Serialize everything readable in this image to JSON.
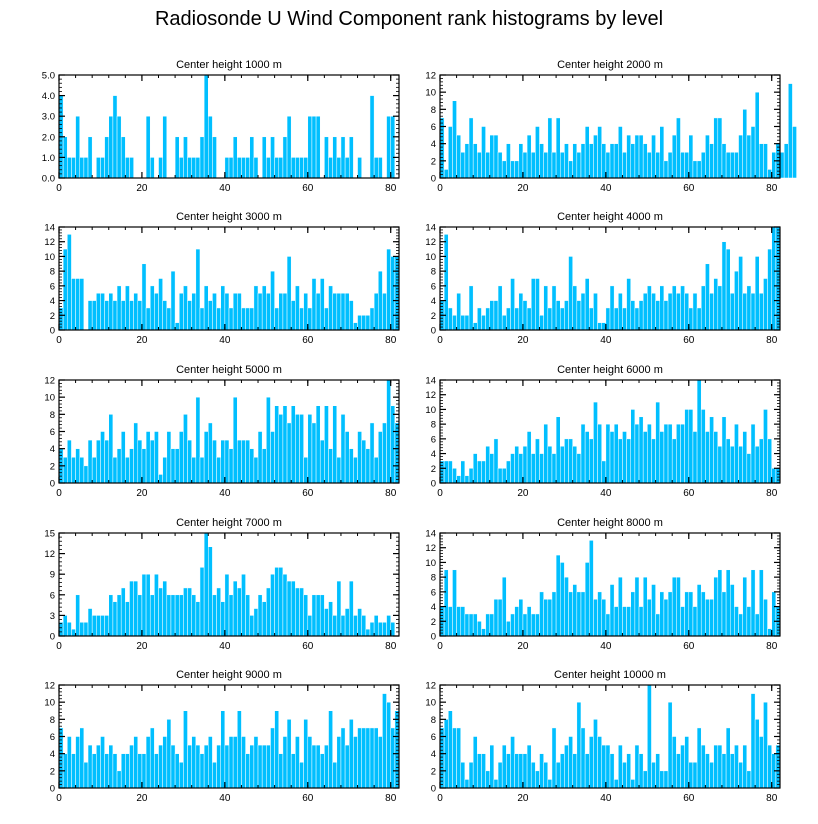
{
  "title": "Radiosonde U Wind Component rank histograms by level",
  "colors": {
    "bar_fill": "#00bfff",
    "bar_edge": "#ffffff",
    "axis": "#000000"
  },
  "chart_data": [
    {
      "type": "bar",
      "title": "Center height 1000 m",
      "xlim": [
        0,
        82
      ],
      "ylim": [
        0,
        5
      ],
      "xticks": [
        0,
        20,
        40,
        60,
        80
      ],
      "yticks": [
        0,
        1,
        2,
        3,
        4,
        5
      ],
      "ytick_labels": [
        "0.0",
        "1.0",
        "2.0",
        "3.0",
        "4.0",
        "5.0"
      ],
      "values": [
        4,
        2,
        1,
        1,
        3,
        1,
        1,
        2,
        0,
        1,
        1,
        2,
        3,
        4,
        3,
        2,
        1,
        1,
        0,
        0,
        0,
        3,
        1,
        0,
        1,
        3,
        0,
        0,
        2,
        1,
        2,
        1,
        1,
        1,
        2,
        5,
        3,
        2,
        0,
        0,
        1,
        1,
        2,
        1,
        1,
        1,
        2,
        1,
        0,
        2,
        1,
        2,
        1,
        1,
        2,
        3,
        1,
        1,
        1,
        1,
        3,
        3,
        3,
        0,
        2,
        1,
        2,
        1,
        2,
        1,
        2,
        0,
        1,
        0,
        0,
        4,
        1,
        1,
        0,
        3,
        3,
        0
      ]
    },
    {
      "type": "bar",
      "title": "Center height 2000 m",
      "xlim": [
        0,
        82
      ],
      "ylim": [
        0,
        12
      ],
      "xticks": [
        0,
        20,
        40,
        60,
        80
      ],
      "yticks": [
        0,
        2,
        4,
        6,
        8,
        10,
        12
      ],
      "ytick_labels": [
        "0",
        "2",
        "4",
        "6",
        "8",
        "10",
        "12"
      ],
      "values": [
        7,
        1,
        6,
        9,
        5,
        3,
        4,
        7,
        4,
        3,
        6,
        3,
        5,
        5,
        3,
        2,
        4,
        2,
        2,
        4,
        3,
        5,
        3,
        6,
        4,
        3,
        7,
        3,
        7,
        3,
        4,
        2,
        4,
        3,
        4,
        6,
        4,
        5,
        6,
        4,
        3,
        4,
        4,
        6,
        3,
        5,
        4,
        5,
        5,
        4,
        3,
        5,
        3,
        6,
        2,
        3,
        5,
        7,
        3,
        3,
        5,
        2,
        2,
        3,
        5,
        4,
        7,
        7,
        4,
        3,
        3,
        3,
        5,
        8,
        5,
        6,
        10,
        4,
        4,
        1,
        3,
        4,
        3,
        4,
        11,
        6
      ]
    },
    {
      "type": "bar",
      "title": "Center height 3000 m",
      "xlim": [
        0,
        82
      ],
      "ylim": [
        0,
        14
      ],
      "xticks": [
        0,
        20,
        40,
        60,
        80
      ],
      "yticks": [
        0,
        2,
        4,
        6,
        8,
        10,
        12,
        14
      ],
      "ytick_labels": [
        "0",
        "2",
        "4",
        "6",
        "8",
        "10",
        "12",
        "14"
      ],
      "values": [
        3,
        11,
        13,
        7,
        7,
        7,
        0,
        4,
        4,
        5,
        5,
        4,
        5,
        4,
        6,
        4,
        6,
        4,
        5,
        4,
        9,
        3,
        6,
        5,
        7,
        4,
        3,
        8,
        1,
        5,
        6,
        4,
        5,
        11,
        3,
        6,
        4,
        5,
        3,
        6,
        5,
        3,
        5,
        5,
        3,
        3,
        3,
        6,
        5,
        6,
        5,
        8,
        3,
        5,
        5,
        10,
        4,
        6,
        3,
        5,
        3,
        7,
        5,
        7,
        3,
        6,
        5,
        5,
        5,
        5,
        4,
        1,
        2,
        2,
        2,
        3,
        5,
        8,
        5,
        11,
        10,
        10
      ]
    },
    {
      "type": "bar",
      "title": "Center height 4000 m",
      "xlim": [
        0,
        82
      ],
      "ylim": [
        0,
        14
      ],
      "xticks": [
        0,
        20,
        40,
        60,
        80
      ],
      "yticks": [
        0,
        2,
        4,
        6,
        8,
        10,
        12,
        14
      ],
      "ytick_labels": [
        "0",
        "2",
        "4",
        "6",
        "8",
        "10",
        "12",
        "14"
      ],
      "values": [
        4,
        13,
        3,
        2,
        5,
        2,
        2,
        6,
        1,
        3,
        2,
        3,
        4,
        4,
        6,
        2,
        3,
        7,
        3,
        5,
        4,
        3,
        7,
        7,
        2,
        6,
        3,
        6,
        4,
        3,
        4,
        10,
        6,
        4,
        5,
        7,
        3,
        5,
        1,
        1,
        3,
        6,
        3,
        5,
        3,
        7,
        4,
        3,
        4,
        5,
        6,
        5,
        4,
        6,
        4,
        5,
        6,
        5,
        6,
        5,
        3,
        5,
        3,
        6,
        9,
        5,
        7,
        6,
        12,
        11,
        5,
        8,
        10,
        5,
        6,
        5,
        10,
        5,
        7,
        11,
        14,
        14
      ]
    },
    {
      "type": "bar",
      "title": "Center height 5000 m",
      "xlim": [
        0,
        82
      ],
      "ylim": [
        0,
        12
      ],
      "xticks": [
        0,
        20,
        40,
        60,
        80
      ],
      "yticks": [
        0,
        2,
        4,
        6,
        8,
        10,
        12
      ],
      "ytick_labels": [
        "0",
        "2",
        "4",
        "6",
        "8",
        "10",
        "12"
      ],
      "values": [
        4,
        3,
        5,
        3,
        4,
        3,
        2,
        5,
        3,
        5,
        6,
        5,
        8,
        3,
        4,
        6,
        3,
        4,
        7,
        5,
        4,
        6,
        5,
        6,
        1,
        3,
        6,
        4,
        4,
        6,
        8,
        5,
        3,
        10,
        3,
        6,
        7,
        5,
        3,
        5,
        5,
        4,
        10,
        5,
        5,
        5,
        4,
        3,
        6,
        4,
        10,
        6,
        9,
        8,
        9,
        7,
        9,
        8,
        8,
        3,
        8,
        7,
        9,
        5,
        9,
        4,
        9,
        3,
        8,
        6,
        4,
        3,
        6,
        5,
        4,
        7,
        3,
        6,
        7,
        12,
        9,
        7
      ]
    },
    {
      "type": "bar",
      "title": "Center height 6000 m",
      "xlim": [
        0,
        82
      ],
      "ylim": [
        0,
        14
      ],
      "xticks": [
        0,
        20,
        40,
        60,
        80
      ],
      "yticks": [
        0,
        2,
        4,
        6,
        8,
        10,
        12,
        14
      ],
      "ytick_labels": [
        "0",
        "2",
        "4",
        "6",
        "8",
        "10",
        "12",
        "14"
      ],
      "values": [
        3,
        3,
        3,
        2,
        1,
        3,
        1,
        2,
        4,
        3,
        3,
        5,
        4,
        6,
        2,
        2,
        3,
        4,
        5,
        4,
        5,
        7,
        4,
        6,
        4,
        8,
        5,
        4,
        9,
        5,
        6,
        6,
        5,
        4,
        8,
        7,
        6,
        11,
        8,
        3,
        8,
        7,
        8,
        6,
        7,
        6,
        10,
        8,
        9,
        7,
        8,
        6,
        11,
        7,
        8,
        8,
        6,
        8,
        8,
        10,
        10,
        7,
        14,
        10,
        7,
        9,
        7,
        5,
        9,
        6,
        5,
        8,
        5,
        7,
        4,
        8,
        5,
        6,
        10,
        6,
        2,
        2
      ]
    },
    {
      "type": "bar",
      "title": "Center height 7000 m",
      "xlim": [
        0,
        82
      ],
      "ylim": [
        0,
        15
      ],
      "xticks": [
        0,
        20,
        40,
        60,
        80
      ],
      "yticks": [
        0,
        3,
        6,
        9,
        12,
        15
      ],
      "ytick_labels": [
        "0",
        "3",
        "6",
        "9",
        "12",
        "15"
      ],
      "values": [
        2,
        3,
        2,
        1,
        6,
        2,
        2,
        4,
        3,
        3,
        3,
        3,
        6,
        5,
        6,
        7,
        5,
        8,
        8,
        6,
        9,
        9,
        6,
        9,
        7,
        8,
        6,
        6,
        6,
        6,
        7,
        7,
        6,
        5,
        10,
        15,
        13,
        6,
        7,
        5,
        9,
        6,
        8,
        7,
        9,
        6,
        3,
        4,
        6,
        5,
        7,
        9,
        10,
        10,
        9,
        8,
        8,
        7,
        7,
        6,
        3,
        6,
        6,
        6,
        4,
        5,
        3,
        8,
        3,
        4,
        8,
        3,
        4,
        3,
        1,
        2,
        3,
        2,
        2,
        3,
        2,
        0
      ]
    },
    {
      "type": "bar",
      "title": "Center height 8000 m",
      "xlim": [
        0,
        82
      ],
      "ylim": [
        0,
        14
      ],
      "xticks": [
        0,
        20,
        40,
        60,
        80
      ],
      "yticks": [
        0,
        2,
        4,
        6,
        8,
        10,
        12,
        14
      ],
      "ytick_labels": [
        "0",
        "2",
        "4",
        "6",
        "8",
        "10",
        "12",
        "14"
      ],
      "values": [
        4,
        9,
        4,
        9,
        4,
        4,
        3,
        3,
        3,
        2,
        1,
        3,
        3,
        5,
        5,
        8,
        2,
        3,
        4,
        5,
        3,
        4,
        3,
        3,
        6,
        5,
        5,
        6,
        11,
        10,
        8,
        6,
        7,
        6,
        6,
        10,
        13,
        5,
        6,
        5,
        3,
        7,
        4,
        8,
        4,
        4,
        6,
        8,
        4,
        8,
        5,
        7,
        3,
        6,
        5,
        6,
        8,
        8,
        4,
        6,
        6,
        4,
        7,
        6,
        5,
        5,
        8,
        9,
        6,
        9,
        7,
        4,
        3,
        8,
        4,
        9,
        3,
        9,
        5,
        1,
        6,
        4
      ]
    },
    {
      "type": "bar",
      "title": "Center height 9000 m",
      "xlim": [
        0,
        82
      ],
      "ylim": [
        0,
        12
      ],
      "xticks": [
        0,
        20,
        40,
        60,
        80
      ],
      "yticks": [
        0,
        2,
        4,
        6,
        8,
        10,
        12
      ],
      "ytick_labels": [
        "0",
        "2",
        "4",
        "6",
        "8",
        "10",
        "12"
      ],
      "values": [
        7,
        4,
        6,
        4,
        6,
        7,
        3,
        5,
        4,
        5,
        6,
        4,
        5,
        4,
        2,
        4,
        4,
        5,
        6,
        4,
        4,
        6,
        7,
        4,
        5,
        6,
        8,
        5,
        4,
        3,
        9,
        5,
        6,
        5,
        4,
        5,
        6,
        3,
        5,
        9,
        5,
        6,
        6,
        9,
        6,
        4,
        5,
        6,
        5,
        5,
        5,
        7,
        9,
        4,
        6,
        8,
        4,
        6,
        3,
        8,
        6,
        5,
        5,
        4,
        5,
        9,
        3,
        6,
        7,
        5,
        8,
        6,
        7,
        7,
        7,
        7,
        7,
        6,
        11,
        10,
        7,
        9
      ]
    },
    {
      "type": "bar",
      "title": "Center height 10000 m",
      "xlim": [
        0,
        82
      ],
      "ylim": [
        0,
        12
      ],
      "xticks": [
        0,
        20,
        40,
        60,
        80
      ],
      "yticks": [
        0,
        2,
        4,
        6,
        8,
        10,
        12
      ],
      "ytick_labels": [
        "0",
        "2",
        "4",
        "6",
        "8",
        "10",
        "12"
      ],
      "values": [
        7,
        8,
        9,
        7,
        7,
        3,
        1,
        3,
        6,
        4,
        4,
        2,
        5,
        1,
        3,
        5,
        4,
        6,
        4,
        4,
        4,
        5,
        3,
        2,
        4,
        3,
        1,
        7,
        3,
        4,
        5,
        6,
        4,
        10,
        7,
        4,
        6,
        8,
        6,
        5,
        5,
        4,
        1,
        5,
        3,
        4,
        1,
        5,
        4,
        2,
        12,
        3,
        4,
        2,
        2,
        10,
        6,
        4,
        5,
        6,
        3,
        3,
        7,
        5,
        4,
        3,
        5,
        5,
        4,
        7,
        4,
        5,
        3,
        5,
        2,
        11,
        8,
        6,
        10,
        5,
        4,
        5
      ]
    }
  ]
}
